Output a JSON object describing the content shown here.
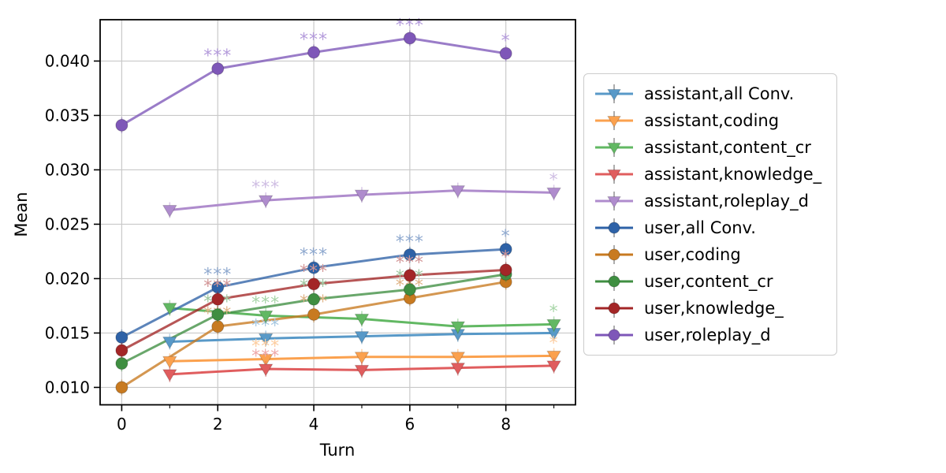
{
  "chart_data": {
    "type": "line",
    "title": "",
    "xlabel": "Turn",
    "ylabel": "Mean",
    "xlim": [
      -0.45,
      9.45
    ],
    "ylim": [
      0.0084,
      0.0438
    ],
    "grid": true,
    "legend_position": "right of axes",
    "xticks_major": [
      0,
      2,
      4,
      6,
      8
    ],
    "xticks_minor": [
      1,
      3,
      5,
      7,
      9
    ],
    "xtick_labels": [
      "0",
      "2",
      "4",
      "6",
      "8"
    ],
    "yticks": [
      0.01,
      0.015,
      0.02,
      0.025,
      0.03,
      0.035,
      0.04
    ],
    "ytick_labels": [
      "0.010",
      "0.015",
      "0.020",
      "0.025",
      "0.030",
      "0.035",
      "0.040"
    ],
    "series": [
      {
        "name": "assistant,all Conv.",
        "role": "assistant",
        "marker": "triangle-down",
        "color": "#5899C8",
        "annotation_color": "#A6C8E2",
        "x": [
          1,
          3,
          5,
          7,
          9
        ],
        "y": [
          0.0142,
          0.0145,
          0.0147,
          0.0149,
          0.015
        ],
        "annotations": [
          {
            "x": 3,
            "label": "***"
          }
        ]
      },
      {
        "name": "assistant,coding",
        "role": "assistant",
        "marker": "triangle-down",
        "color": "#FBA14E",
        "annotation_color": "#FDCDA0",
        "x": [
          1,
          3,
          5,
          7,
          9
        ],
        "y": [
          0.0124,
          0.0126,
          0.0128,
          0.0128,
          0.0129
        ],
        "annotations": [
          {
            "x": 3,
            "label": "***"
          },
          {
            "x": 9,
            "label": "*"
          }
        ]
      },
      {
        "name": "assistant,content_cr",
        "role": "assistant",
        "marker": "triangle-down",
        "color": "#62B863",
        "annotation_color": "#A8D6A8",
        "x": [
          1,
          3,
          5,
          7,
          9
        ],
        "y": [
          0.0173,
          0.0166,
          0.0163,
          0.0156,
          0.0158
        ],
        "annotations": [
          {
            "x": 3,
            "label": "***"
          },
          {
            "x": 9,
            "label": "*"
          }
        ]
      },
      {
        "name": "assistant,knowledge_",
        "role": "assistant",
        "marker": "triangle-down",
        "color": "#E05D5E",
        "annotation_color": "#EFA9AA",
        "x": [
          1,
          3,
          5,
          7,
          9
        ],
        "y": [
          0.0112,
          0.0117,
          0.0116,
          0.0118,
          0.012
        ],
        "annotations": [
          {
            "x": 3,
            "label": "***"
          }
        ]
      },
      {
        "name": "assistant,roleplay_d",
        "role": "assistant",
        "marker": "triangle-down",
        "color": "#AF8CCD",
        "annotation_color": "#CFBEE3",
        "x": [
          1,
          3,
          5,
          7,
          9
        ],
        "y": [
          0.0263,
          0.0272,
          0.0277,
          0.0281,
          0.0279
        ],
        "annotations": [
          {
            "x": 3,
            "label": "***"
          },
          {
            "x": 9,
            "label": "*"
          }
        ]
      },
      {
        "name": "user,all Conv.",
        "role": "user",
        "marker": "circle",
        "color": "#2E62A7",
        "annotation_color": "#8FA9CF",
        "x": [
          0,
          2,
          4,
          6,
          8
        ],
        "y": [
          0.0146,
          0.0192,
          0.021,
          0.0222,
          0.0227
        ],
        "annotations": [
          {
            "x": 2,
            "label": "***"
          },
          {
            "x": 4,
            "label": "***"
          },
          {
            "x": 6,
            "label": "***"
          },
          {
            "x": 8,
            "label": "*"
          }
        ]
      },
      {
        "name": "user,coding",
        "role": "user",
        "marker": "circle",
        "color": "#C87A20",
        "annotation_color": "#DFB284",
        "x": [
          0,
          2,
          4,
          6,
          8
        ],
        "y": [
          0.01,
          0.0156,
          0.0167,
          0.0182,
          0.0197
        ],
        "annotations": [
          {
            "x": 2,
            "label": "***"
          },
          {
            "x": 4,
            "label": "***"
          },
          {
            "x": 6,
            "label": "***"
          }
        ]
      },
      {
        "name": "user,content_cr",
        "role": "user",
        "marker": "circle",
        "color": "#3F8E41",
        "annotation_color": "#9DC69E",
        "x": [
          0,
          2,
          4,
          6,
          8
        ],
        "y": [
          0.0122,
          0.0167,
          0.0181,
          0.019,
          0.0204
        ],
        "annotations": [
          {
            "x": 2,
            "label": "***"
          },
          {
            "x": 4,
            "label": "***"
          },
          {
            "x": 6,
            "label": "***"
          }
        ]
      },
      {
        "name": "user,knowledge_",
        "role": "user",
        "marker": "circle",
        "color": "#A32627",
        "annotation_color": "#D29596",
        "x": [
          0,
          2,
          4,
          6,
          8
        ],
        "y": [
          0.0134,
          0.0181,
          0.0195,
          0.0203,
          0.0208
        ],
        "annotations": [
          {
            "x": 2,
            "label": "***"
          },
          {
            "x": 4,
            "label": "***"
          },
          {
            "x": 6,
            "label": "***"
          },
          {
            "x": 8,
            "label": "*"
          }
        ]
      },
      {
        "name": "user,roleplay_d",
        "role": "user",
        "marker": "circle",
        "color": "#7E57B8",
        "annotation_color": "#B49BDB",
        "x": [
          0,
          2,
          4,
          6,
          8
        ],
        "y": [
          0.0341,
          0.0393,
          0.0408,
          0.0421,
          0.0407
        ],
        "annotations": [
          {
            "x": 2,
            "label": "***"
          },
          {
            "x": 4,
            "label": "***"
          },
          {
            "x": 6,
            "label": "***"
          },
          {
            "x": 8,
            "label": "*"
          }
        ]
      }
    ],
    "style": {
      "grid_color": "#c9c9c9",
      "spine_color": "#000000",
      "errorbar_visible": "small vertical bars through markers",
      "legend_errorbar_color": "#8a8a8a"
    }
  }
}
